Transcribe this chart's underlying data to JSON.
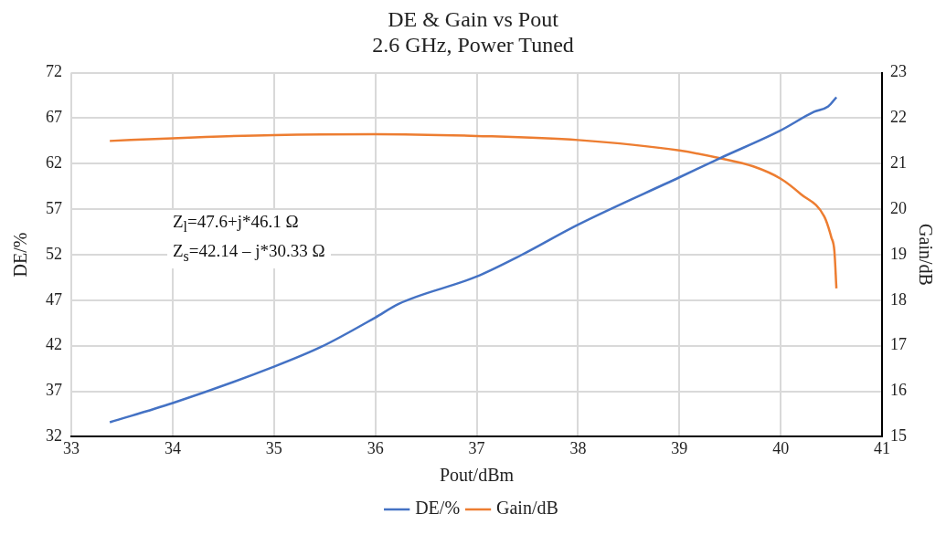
{
  "chart_data": {
    "type": "line",
    "title": "DE & Gain vs Pout",
    "subtitle": "2.6 GHz, Power Tuned",
    "xlabel": "Pout/dBm",
    "ylabel": "DE/%",
    "y2label": "Gain/dB",
    "xlim": [
      33,
      41
    ],
    "xticks": [
      33,
      34,
      35,
      36,
      37,
      38,
      39,
      40,
      41
    ],
    "ylim": [
      32,
      72
    ],
    "yticks": [
      32,
      37,
      42,
      47,
      52,
      57,
      62,
      67,
      72
    ],
    "y2lim": [
      15,
      23
    ],
    "y2ticks": [
      15,
      16,
      17,
      18,
      19,
      20,
      21,
      22,
      23
    ],
    "grid": true,
    "legend": "bottom",
    "marker": "none",
    "line_style": "solid",
    "annotations": [
      "Z$_{l}$=47.6+j*46.1 Ω",
      "Z$_{s}$=42.14 – j*30.33 Ω"
    ],
    "series": [
      {
        "name": "DE/%",
        "color": "#4472c4",
        "x": [
          33.38,
          34.0,
          35.0,
          35.47,
          36.0,
          36.23,
          37.0,
          37.43,
          38.0,
          39.0,
          39.4,
          39.99,
          40.33,
          40.47,
          40.55
        ],
        "values": [
          33.6,
          35.7,
          39.7,
          41.9,
          45.1,
          46.6,
          49.6,
          51.9,
          55.3,
          60.5,
          62.6,
          65.6,
          67.7,
          68.3,
          69.3
        ]
      },
      {
        "name": "Gain/dB",
        "color": "#ed7d31",
        "axis": "y2",
        "x": [
          33.38,
          34.0,
          35.0,
          36.0,
          37.0,
          38.0,
          39.0,
          39.4,
          39.73,
          40.0,
          40.2,
          40.43,
          40.5,
          40.53,
          40.55
        ],
        "values": [
          21.5,
          21.56,
          21.63,
          21.65,
          21.61,
          21.52,
          21.29,
          21.12,
          20.94,
          20.67,
          20.33,
          19.84,
          19.38,
          19.08,
          18.26
        ]
      }
    ]
  }
}
